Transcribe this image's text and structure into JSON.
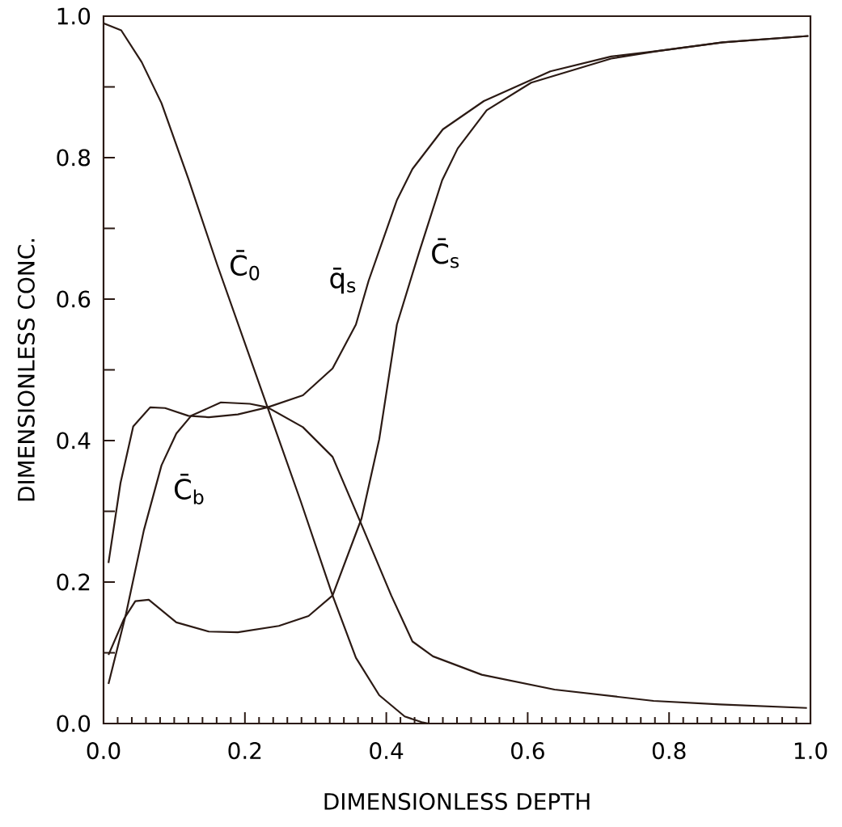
{
  "chart_data": {
    "type": "line",
    "xlabel": "DIMENSIONLESS DEPTH",
    "ylabel": "DIMENSIONLESS CONC.",
    "xlim": [
      0,
      1
    ],
    "ylim": [
      0,
      1
    ],
    "xticks": [
      {
        "value": 0,
        "label": "0.0"
      },
      0.2,
      0.4,
      0.6,
      0.8,
      {
        "value": 1,
        "label": "1.0"
      }
    ],
    "yticks": [
      {
        "value": 0,
        "label": "0.0"
      },
      {
        "value": 0.1,
        "label": null
      },
      0.2,
      {
        "value": 0.3,
        "label": null
      },
      0.4,
      {
        "value": 0.5,
        "label": null
      },
      0.6,
      {
        "value": 0.7,
        "label": null
      },
      0.8,
      {
        "value": 0.9,
        "label": null
      },
      {
        "value": 1,
        "label": "1.0"
      }
    ],
    "grid": false,
    "series": [
      {
        "name": "C̄$_{0}$",
        "color": "#2b1a14",
        "x": [
          0,
          0.025,
          0.054,
          0.082,
          0.12,
          0.161,
          0.232,
          0.279,
          0.324,
          0.357,
          0.39,
          0.426,
          0.45,
          0.46
        ],
        "values": [
          0.99,
          0.98,
          0.935,
          0.877,
          0.77,
          0.648,
          0.447,
          0.314,
          0.181,
          0.093,
          0.04,
          0.01,
          0.002,
          0
        ]
      },
      {
        "name": "q̄$_{s}$",
        "color": "#2b1a14",
        "x": [
          0.007,
          0.024,
          0.042,
          0.066,
          0.087,
          0.12,
          0.149,
          0.19,
          0.232,
          0.282,
          0.324,
          0.357,
          0.375,
          0.415,
          0.437,
          0.48,
          0.538,
          0.632,
          0.718,
          0.786,
          0.876,
          0.997
        ],
        "values": [
          0.227,
          0.34,
          0.42,
          0.447,
          0.446,
          0.435,
          0.433,
          0.437,
          0.447,
          0.464,
          0.502,
          0.564,
          0.626,
          0.74,
          0.784,
          0.84,
          0.88,
          0.922,
          0.943,
          0.951,
          0.963,
          0.972
        ]
      },
      {
        "name": "C̄$_{s}$",
        "color": "#2b1a14",
        "x": [
          0.007,
          0.029,
          0.045,
          0.064,
          0.103,
          0.149,
          0.19,
          0.248,
          0.29,
          0.324,
          0.365,
          0.39,
          0.415,
          0.446,
          0.479,
          0.501,
          0.542,
          0.605,
          0.718,
          0.786,
          0.876,
          0.997
        ],
        "values": [
          0.097,
          0.148,
          0.173,
          0.175,
          0.143,
          0.13,
          0.129,
          0.138,
          0.152,
          0.181,
          0.29,
          0.402,
          0.564,
          0.665,
          0.768,
          0.813,
          0.867,
          0.906,
          0.94,
          0.951,
          0.963,
          0.972
        ]
      },
      {
        "name": "C̄$_{b}$",
        "color": "#2b1a14",
        "x": [
          0.007,
          0.032,
          0.057,
          0.082,
          0.103,
          0.124,
          0.166,
          0.207,
          0.232,
          0.282,
          0.324,
          0.365,
          0.407,
          0.437,
          0.466,
          0.535,
          0.638,
          0.778,
          0.872,
          0.995
        ],
        "values": [
          0.056,
          0.156,
          0.273,
          0.365,
          0.41,
          0.435,
          0.454,
          0.452,
          0.447,
          0.419,
          0.377,
          0.281,
          0.181,
          0.116,
          0.095,
          0.069,
          0.048,
          0.032,
          0.027,
          0.022
        ]
      }
    ]
  }
}
